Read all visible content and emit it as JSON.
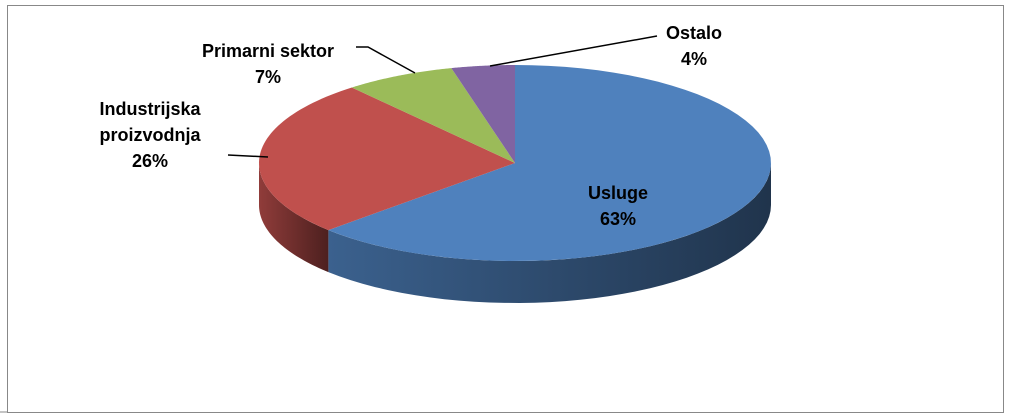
{
  "chart_data": {
    "type": "pie3d",
    "categories": [
      "Usluge",
      "Industrijska proizvodnja",
      "Primarni sektor",
      "Ostalo"
    ],
    "values": [
      63,
      26,
      7,
      4
    ],
    "value_labels": [
      "63%",
      "26%",
      "7%",
      "4%"
    ],
    "colors": [
      "#4f81bd",
      "#c0504d",
      "#9bbb59",
      "#8064a2"
    ]
  }
}
